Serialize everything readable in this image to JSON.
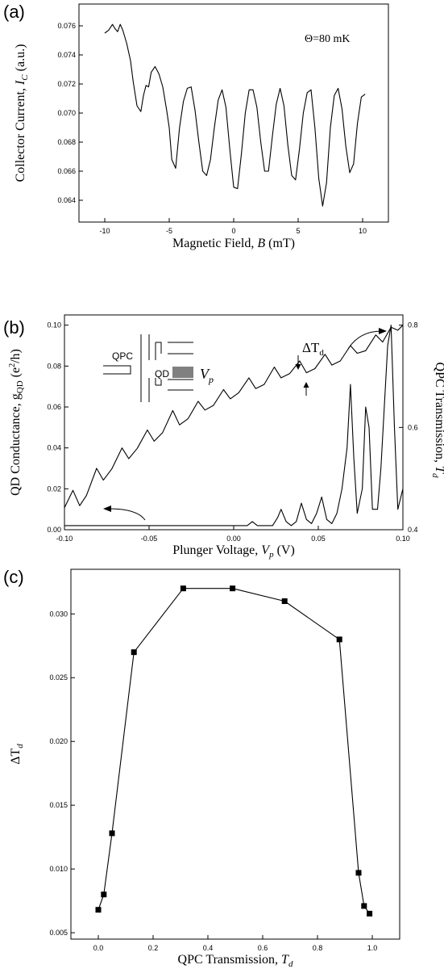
{
  "chart_data": [
    {
      "id": "a",
      "type": "line",
      "panel_label": "(a)",
      "annotation": "Θ=80 mK",
      "xlabel": "Magnetic Field, ",
      "xlabel_var": "B",
      "xlabel_unit": " (mT)",
      "ylabel": "Collector Current, ",
      "ylabel_var": "I",
      "ylabel_sub": "C",
      "ylabel_unit": " (a.u.)",
      "xlim": [
        -12,
        12
      ],
      "ylim": [
        0.0625,
        0.0775
      ],
      "xticks": [
        -10,
        -5,
        0,
        5,
        10
      ],
      "yticks": [
        0.064,
        0.066,
        0.068,
        0.07,
        0.072,
        0.074,
        0.076
      ],
      "ytick_labels": [
        "0.064",
        "0.066",
        "0.068",
        "0.070",
        "0.072",
        "0.074",
        "0.076"
      ],
      "series": [
        {
          "x": [
            -10.0,
            -9.7,
            -9.4,
            -9.2,
            -9.0,
            -8.8,
            -8.6,
            -8.3,
            -8.0,
            -7.8,
            -7.5,
            -7.2,
            -7.0,
            -6.8,
            -6.6,
            -6.4,
            -6.1,
            -5.8,
            -5.5,
            -5.2,
            -5.0,
            -4.8,
            -4.5,
            -4.2,
            -3.9,
            -3.6,
            -3.3,
            -3.0,
            -2.7,
            -2.4,
            -2.1,
            -1.8,
            -1.5,
            -1.2,
            -0.9,
            -0.6,
            -0.3,
            0.0,
            0.3,
            0.6,
            0.9,
            1.2,
            1.5,
            1.8,
            2.1,
            2.4,
            2.7,
            3.0,
            3.3,
            3.6,
            3.9,
            4.2,
            4.5,
            4.8,
            5.1,
            5.4,
            5.7,
            6.0,
            6.3,
            6.6,
            6.9,
            7.2,
            7.5,
            7.8,
            8.1,
            8.4,
            8.7,
            9.0,
            9.3,
            9.6,
            9.9,
            10.2
          ],
          "y": [
            0.0755,
            0.0757,
            0.0761,
            0.0758,
            0.0756,
            0.0761,
            0.0757,
            0.0748,
            0.0736,
            0.0722,
            0.0705,
            0.0701,
            0.0712,
            0.0719,
            0.0718,
            0.0728,
            0.0732,
            0.0727,
            0.0718,
            0.0702,
            0.069,
            0.0668,
            0.0662,
            0.069,
            0.0708,
            0.0717,
            0.0718,
            0.0702,
            0.068,
            0.066,
            0.0657,
            0.0668,
            0.069,
            0.0709,
            0.0716,
            0.0704,
            0.0675,
            0.0649,
            0.0648,
            0.0672,
            0.07,
            0.0716,
            0.0716,
            0.0704,
            0.068,
            0.066,
            0.066,
            0.0684,
            0.0706,
            0.0717,
            0.0705,
            0.0678,
            0.0657,
            0.0654,
            0.0675,
            0.07,
            0.0714,
            0.0716,
            0.069,
            0.0655,
            0.0636,
            0.0652,
            0.069,
            0.0712,
            0.0717,
            0.0703,
            0.0677,
            0.0659,
            0.0665,
            0.0693,
            0.0711,
            0.0713
          ]
        }
      ]
    },
    {
      "id": "b",
      "type": "line",
      "panel_label": "(b)",
      "xlabel": "Plunger Voltage, ",
      "xlabel_var": "V",
      "xlabel_sub": "p",
      "xlabel_unit": " (V)",
      "ylabel": "QD Conductance, g",
      "ylabel_sub": "QD",
      "ylabel_unit": " (e",
      "ylabel_unit2": "/h)",
      "y2label": "QPC Transmission, ",
      "y2label_var": "T",
      "y2label_sub": "d",
      "xlim": [
        -0.1,
        0.1
      ],
      "ylim": [
        0.0,
        0.105
      ],
      "y2lim": [
        0.4,
        0.82
      ],
      "xticks": [
        -0.1,
        -0.05,
        0.0,
        0.05,
        0.1
      ],
      "xtick_labels": [
        "-0.10",
        "-0.05",
        "0.00",
        "0.05",
        "0.10"
      ],
      "yticks": [
        0.0,
        0.02,
        0.04,
        0.06,
        0.08,
        0.1
      ],
      "ytick_labels": [
        "0.00",
        "0.02",
        "0.04",
        "0.06",
        "0.08",
        "0.10"
      ],
      "y2ticks": [
        0.4,
        0.6,
        0.8
      ],
      "y2tick_labels": [
        "0.4",
        "0.6",
        "0.8"
      ],
      "inset_labels": {
        "qpc": "QPC",
        "qd": "QD",
        "vp_var": "V",
        "vp_sub": "p"
      },
      "delta_label": "ΔT",
      "delta_sub": "d",
      "series": [
        {
          "axis": "left",
          "x": [
            -0.1,
            -0.08,
            -0.06,
            -0.04,
            -0.02,
            0.0,
            0.005,
            0.008,
            0.011,
            0.014,
            0.017,
            0.02,
            0.023,
            0.026,
            0.028,
            0.031,
            0.034,
            0.037,
            0.04,
            0.043,
            0.046,
            0.049,
            0.052,
            0.055,
            0.058,
            0.061,
            0.064,
            0.067,
            0.069,
            0.071,
            0.073,
            0.076,
            0.078,
            0.08,
            0.082,
            0.085,
            0.087,
            0.089,
            0.091,
            0.093,
            0.095,
            0.097,
            0.1
          ],
          "y": [
            0.002,
            0.002,
            0.002,
            0.002,
            0.002,
            0.002,
            0.002,
            0.002,
            0.004,
            0.002,
            0.002,
            0.002,
            0.002,
            0.006,
            0.01,
            0.004,
            0.002,
            0.004,
            0.013,
            0.005,
            0.003,
            0.008,
            0.016,
            0.005,
            0.003,
            0.008,
            0.02,
            0.04,
            0.071,
            0.035,
            0.008,
            0.02,
            0.06,
            0.05,
            0.01,
            0.01,
            0.03,
            0.06,
            0.09,
            0.1,
            0.05,
            0.01,
            0.02
          ]
        },
        {
          "axis": "right",
          "x": [
            -0.1,
            -0.095,
            -0.091,
            -0.087,
            -0.081,
            -0.077,
            -0.072,
            -0.066,
            -0.062,
            -0.057,
            -0.051,
            -0.047,
            -0.042,
            -0.036,
            -0.032,
            -0.027,
            -0.021,
            -0.017,
            -0.012,
            -0.006,
            -0.002,
            0.003,
            0.009,
            0.013,
            0.018,
            0.024,
            0.028,
            0.033,
            0.039,
            0.043,
            0.048,
            0.054,
            0.058,
            0.063,
            0.069,
            0.073,
            0.078,
            0.084,
            0.088,
            0.093,
            0.097,
            0.1
          ],
          "y": [
            0.443,
            0.477,
            0.447,
            0.467,
            0.52,
            0.497,
            0.519,
            0.56,
            0.539,
            0.559,
            0.595,
            0.573,
            0.59,
            0.633,
            0.605,
            0.617,
            0.651,
            0.634,
            0.643,
            0.674,
            0.656,
            0.668,
            0.697,
            0.676,
            0.684,
            0.718,
            0.697,
            0.705,
            0.73,
            0.707,
            0.715,
            0.743,
            0.722,
            0.73,
            0.76,
            0.745,
            0.75,
            0.781,
            0.767,
            0.796,
            0.79,
            0.8
          ]
        }
      ]
    },
    {
      "id": "c",
      "type": "line",
      "panel_label": "(c)",
      "xlabel": "QPC Transmission, ",
      "xlabel_var": "T",
      "xlabel_sub": "d",
      "ylabel": "ΔT",
      "ylabel_sub": "d",
      "xlim": [
        -0.1,
        1.1
      ],
      "ylim": [
        0.0045,
        0.0335
      ],
      "xticks": [
        0.0,
        0.2,
        0.4,
        0.6,
        0.8,
        1.0
      ],
      "xtick_labels": [
        "0.0",
        "0.2",
        "0.4",
        "0.6",
        "0.8",
        "1.0"
      ],
      "yticks": [
        0.005,
        0.01,
        0.015,
        0.02,
        0.025,
        0.03
      ],
      "ytick_labels": [
        "0.005",
        "0.010",
        "0.015",
        "0.020",
        "0.025",
        "0.030"
      ],
      "series": [
        {
          "x": [
            0.0,
            0.02,
            0.05,
            0.13,
            0.31,
            0.49,
            0.68,
            0.88,
            0.95,
            0.97,
            0.99
          ],
          "y": [
            0.0068,
            0.008,
            0.0128,
            0.027,
            0.032,
            0.032,
            0.031,
            0.028,
            0.0097,
            0.0071,
            0.0065
          ]
        }
      ]
    }
  ]
}
